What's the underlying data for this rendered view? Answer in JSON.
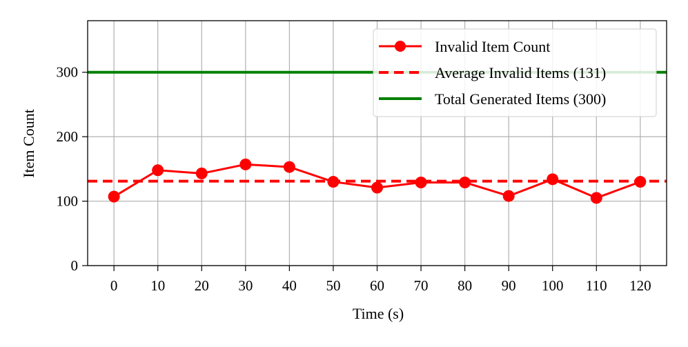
{
  "chart_data": {
    "type": "line",
    "title": "",
    "xlabel": "Time (s)",
    "ylabel": "Item Count",
    "xlim": [
      -6,
      126
    ],
    "ylim": [
      0,
      380
    ],
    "xticks": [
      0,
      10,
      20,
      30,
      40,
      50,
      60,
      70,
      80,
      90,
      100,
      110,
      120
    ],
    "yticks": [
      0,
      100,
      200,
      300
    ],
    "grid": true,
    "legend_position": "top-right",
    "x": [
      0,
      10,
      20,
      30,
      40,
      50,
      60,
      70,
      80,
      90,
      100,
      110,
      120
    ],
    "series": [
      {
        "name": "Invalid Item Count",
        "style": "line-marker",
        "color": "#ff0000",
        "values": [
          107,
          148,
          143,
          157,
          153,
          130,
          121,
          129,
          129,
          108,
          134,
          105,
          130
        ]
      },
      {
        "name": "Average Invalid Items (131)",
        "style": "dashed-hline",
        "color": "#ff0000",
        "value": 131
      },
      {
        "name": "Total Generated Items (300)",
        "style": "solid-hline",
        "color": "#008000",
        "value": 300
      }
    ]
  }
}
